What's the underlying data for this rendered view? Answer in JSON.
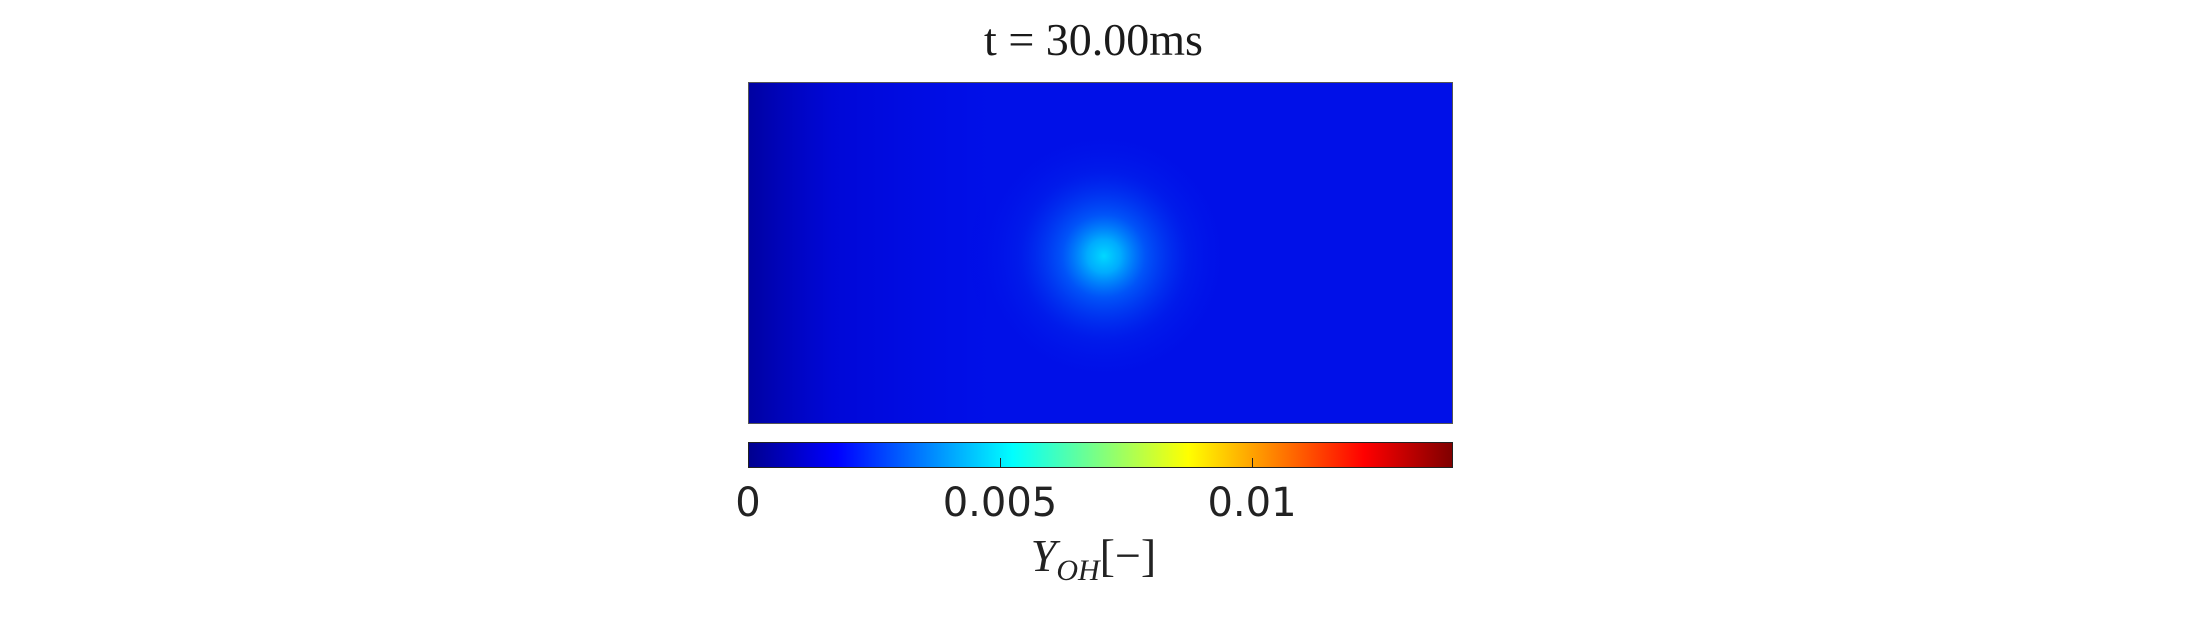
{
  "chart_data": {
    "type": "heatmap",
    "title": "t = 30.00ms",
    "colormap": "jet",
    "colorbar": {
      "range": [
        0,
        0.014
      ],
      "ticks": [
        0,
        0.005,
        0.01
      ],
      "tick_labels": [
        "0",
        "0.005",
        "0.01"
      ],
      "label_symbol": "Y",
      "label_subscript": "OH",
      "label_suffix": "[−]",
      "placement": "bottom"
    },
    "field": {
      "background_value": 0.0022,
      "peak_value": 0.0047,
      "left_edge_value": 0.0012,
      "peak_location": "center-left"
    }
  }
}
